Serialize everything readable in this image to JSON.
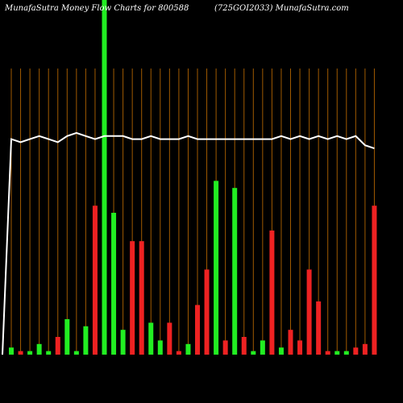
{
  "chart_data": {
    "type": "bar",
    "title_left": "MunafaSutra  Money Flow  Charts for 800588",
    "title_right": "(725GOI2033) MunafaSutra.com",
    "grid": true,
    "grid_color": "#a05a00",
    "inflow_color": "#22ee22",
    "outflow_color": "#ee2222",
    "line_color": "#ffffff",
    "ylim": [
      0,
      100
    ],
    "categories": [
      "",
      "",
      "",
      "",
      "",
      "",
      "",
      "",
      "",
      "",
      "",
      "",
      "",
      "",
      "",
      "",
      "",
      "",
      "",
      "",
      "",
      "",
      "",
      "",
      "",
      "",
      "",
      "",
      "",
      "",
      "",
      "",
      "",
      "",
      "",
      "",
      "",
      "",
      "",
      ""
    ],
    "series": [
      {
        "values": [
          2,
          1,
          1,
          3,
          1,
          5,
          10,
          1,
          8,
          42,
          100,
          40,
          7,
          32,
          32,
          9,
          4,
          9,
          1,
          3,
          14,
          24,
          49,
          4,
          47,
          5,
          1,
          4,
          35,
          2,
          7,
          4,
          24,
          15,
          1,
          1,
          1,
          2,
          3,
          42
        ],
        "colors": [
          "g",
          "r",
          "g",
          "g",
          "g",
          "r",
          "g",
          "g",
          "g",
          "r",
          "g",
          "g",
          "g",
          "r",
          "r",
          "g",
          "g",
          "r",
          "r",
          "g",
          "r",
          "r",
          "g",
          "r",
          "g",
          "r",
          "g",
          "g",
          "r",
          "g",
          "r",
          "r",
          "r",
          "r",
          "r",
          "g",
          "g",
          "r",
          "r",
          "r"
        ]
      },
      {
        "type": "line",
        "values": [
          70,
          69,
          70,
          71,
          70,
          69,
          71,
          72,
          71,
          70,
          71,
          71,
          71,
          70,
          70,
          71,
          70,
          70,
          70,
          71,
          70,
          70,
          70,
          70,
          70,
          70,
          70,
          70,
          70,
          71,
          70,
          71,
          70,
          71,
          70,
          71,
          70,
          71,
          68,
          67
        ],
        "start_value": 0
      }
    ]
  }
}
